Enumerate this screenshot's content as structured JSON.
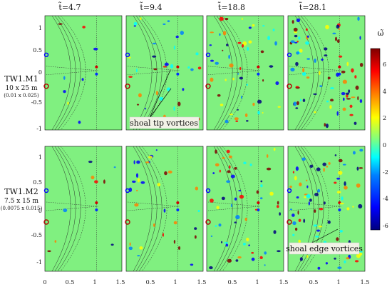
{
  "figure": {
    "column_titles": [
      "t̃=4.7",
      "t̃=9.4",
      "t̃=18.8",
      "t̃=28.1"
    ],
    "rows": [
      {
        "title": "TW1.M1",
        "dims": "10 x 25 m",
        "scaled": "(0.01 x 0.025)"
      },
      {
        "title": "TW1.M2",
        "dims": "7.5 x 15 m",
        "scaled": "(0.0075 x 0.015)"
      }
    ],
    "annotations": {
      "row1": "shoal tip vortices",
      "row2": "shoal edge vortices"
    },
    "y_tick_labels": [
      "1",
      "0.5",
      "0",
      "-0.5",
      "-1"
    ],
    "x_tick_labels": [
      "0",
      "0.5",
      "1",
      "1.5",
      "0.5",
      "1",
      "1.5",
      "0.5",
      "1",
      "1.5",
      "0.5",
      "1",
      "1.5"
    ],
    "colorbar": {
      "label": "ω̃",
      "tick_labels": [
        "6",
        "4",
        "2",
        "0",
        "-2",
        "-4",
        "-6"
      ],
      "colors": [
        "#00007f",
        "#0000ff",
        "#007fff",
        "#00ffff",
        "#7fff7f",
        "#ffff00",
        "#ff7f00",
        "#ff0000",
        "#7f0000"
      ]
    },
    "background_color": "#80f080"
  }
}
